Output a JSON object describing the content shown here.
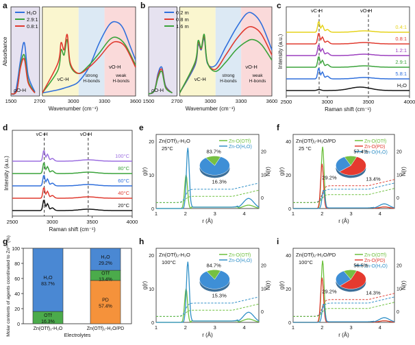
{
  "chart_data": [
    {
      "panel": "a",
      "type": "line",
      "xlabel": "Wavenumber (cm⁻¹)",
      "ylabel": "Absorbance",
      "x_break": [
        1500,
        2700
      ],
      "ticks_left": [
        "1500",
        "2700"
      ],
      "ticks_right": [
        "3000",
        "3300",
        "3600"
      ],
      "legend": [
        "H₂O",
        "2.9:1",
        "0.8:1"
      ],
      "region_labels": [
        "strong H-bonds",
        "weak H-bonds"
      ],
      "peak_labels": [
        "ρO-H",
        "νC-H",
        "νO-H"
      ],
      "colors": [
        "#2f6fdc",
        "#3aa33a",
        "#e03a2f"
      ],
      "series": [
        {
          "name": "H₂O",
          "x": [
            1500,
            1550,
            1600,
            1640,
            1680,
            1750,
            2700,
            2850,
            2920,
            2980,
            3050,
            3150,
            3250,
            3350,
            3420,
            3480,
            3550,
            3600
          ],
          "y": [
            0.02,
            0.05,
            0.35,
            0.52,
            0.2,
            0.04,
            0.03,
            0.06,
            0.08,
            0.1,
            0.14,
            0.28,
            0.52,
            0.7,
            0.72,
            0.66,
            0.48,
            0.35
          ]
        },
        {
          "name": "2.9:1",
          "x": [
            1500,
            1560,
            1600,
            1640,
            1680,
            1750,
            2700,
            2850,
            2880,
            2910,
            2940,
            2970,
            3050,
            3150,
            3250,
            3350,
            3420,
            3500,
            3600
          ],
          "y": [
            0.02,
            0.05,
            0.3,
            0.4,
            0.15,
            0.03,
            0.03,
            0.25,
            0.45,
            0.4,
            0.55,
            0.3,
            0.22,
            0.3,
            0.42,
            0.55,
            0.57,
            0.5,
            0.3
          ]
        },
        {
          "name": "0.8:1",
          "x": [
            1500,
            1560,
            1600,
            1640,
            1680,
            1750,
            2700,
            2850,
            2880,
            2910,
            2940,
            2970,
            3050,
            3150,
            3250,
            3350,
            3420,
            3500,
            3600
          ],
          "y": [
            0.02,
            0.05,
            0.28,
            0.36,
            0.13,
            0.03,
            0.03,
            0.32,
            0.52,
            0.45,
            0.6,
            0.32,
            0.22,
            0.28,
            0.38,
            0.5,
            0.53,
            0.48,
            0.28
          ]
        }
      ]
    },
    {
      "panel": "b",
      "type": "line",
      "xlabel": "Wavenumber (cm⁻¹)",
      "x_break": [
        1500,
        2700
      ],
      "ticks_left": [
        "1500",
        "2700"
      ],
      "ticks_right": [
        "3000",
        "3300",
        "3600"
      ],
      "legend": [
        "0.2 m",
        "0.8 m",
        "1.6 m"
      ],
      "region_labels": [
        "strong H-bonds",
        "weak H-bonds"
      ],
      "peak_labels": [
        "ρO-H",
        "νC-H",
        "νO-H"
      ],
      "colors": [
        "#2f6fdc",
        "#e03a2f",
        "#3aa33a"
      ],
      "series": [
        {
          "name": "0.2 m",
          "x": [
            1500,
            1560,
            1600,
            1640,
            1680,
            1750,
            2700,
            2850,
            2880,
            2910,
            2940,
            2970,
            3050,
            3150,
            3250,
            3350,
            3420,
            3500,
            3600
          ],
          "y": [
            0.02,
            0.05,
            0.22,
            0.28,
            0.1,
            0.03,
            0.03,
            0.3,
            0.5,
            0.45,
            0.56,
            0.32,
            0.3,
            0.48,
            0.66,
            0.8,
            0.8,
            0.7,
            0.45
          ]
        },
        {
          "name": "0.8 m",
          "x": [
            1500,
            1560,
            1600,
            1640,
            1680,
            1750,
            2700,
            2850,
            2880,
            2910,
            2940,
            2970,
            3050,
            3150,
            3250,
            3350,
            3420,
            3500,
            3600
          ],
          "y": [
            0.02,
            0.05,
            0.2,
            0.26,
            0.09,
            0.03,
            0.03,
            0.32,
            0.52,
            0.46,
            0.58,
            0.33,
            0.26,
            0.4,
            0.55,
            0.66,
            0.67,
            0.6,
            0.4
          ]
        },
        {
          "name": "1.6 m",
          "x": [
            1500,
            1560,
            1600,
            1640,
            1680,
            1750,
            2700,
            2850,
            2880,
            2910,
            2940,
            2970,
            3050,
            3150,
            3250,
            3350,
            3420,
            3500,
            3600
          ],
          "y": [
            0.02,
            0.05,
            0.18,
            0.24,
            0.08,
            0.03,
            0.03,
            0.33,
            0.54,
            0.47,
            0.6,
            0.33,
            0.24,
            0.33,
            0.45,
            0.53,
            0.55,
            0.5,
            0.35
          ]
        }
      ]
    },
    {
      "panel": "c",
      "type": "line",
      "xlabel": "Raman shift (cm⁻¹)",
      "ylabel": "Intensity (a.u.)",
      "xlim": [
        2500,
        4000
      ],
      "x_ticks": [
        2500,
        3000,
        3500,
        4000
      ],
      "vlines": [
        2900,
        3500
      ],
      "vline_labels": [
        "νC-H",
        "νO-H"
      ],
      "series": [
        {
          "name": "0.4:1",
          "color": "#e6d31a",
          "offset": 5
        },
        {
          "name": "0.8:1",
          "color": "#e03a2f",
          "offset": 4
        },
        {
          "name": "1.2:1",
          "color": "#9c3fbf",
          "offset": 3
        },
        {
          "name": "2.9:1",
          "color": "#3aa33a",
          "offset": 2
        },
        {
          "name": "5.8:1",
          "color": "#2f6fdc",
          "offset": 1
        },
        {
          "name": "H₂O",
          "color": "#111111",
          "offset": 0
        }
      ]
    },
    {
      "panel": "d",
      "type": "line",
      "xlabel": "Raman shift (cm⁻¹)",
      "ylabel": "Intensity (a.u.)",
      "xlim": [
        2500,
        4000
      ],
      "x_ticks": [
        2500,
        3000,
        3500,
        4000
      ],
      "vlines": [
        2900,
        3450
      ],
      "vline_labels": [
        "νC-H",
        "νO-H"
      ],
      "series": [
        {
          "name": "100°C",
          "color": "#9c6fe0",
          "offset": 4
        },
        {
          "name": "80°C",
          "color": "#3aa33a",
          "offset": 3
        },
        {
          "name": "60°C",
          "color": "#2f6fdc",
          "offset": 2
        },
        {
          "name": "40°C",
          "color": "#e03a2f",
          "offset": 1
        },
        {
          "name": "20°C",
          "color": "#111111",
          "offset": 0
        }
      ]
    },
    {
      "panel": "e",
      "type": "line",
      "title": "Zn(OTf)₂-H₂O",
      "subtitle": "25°C",
      "xlabel": "r (Å)",
      "ylabel": "g(r)",
      "y2label": "N(r)",
      "legend": [
        "Zn-O(OTf)",
        "Zn-O(H₂O)"
      ],
      "pie": {
        "values": [
          83.7,
          16.3
        ],
        "labels": [
          "83.7%",
          "16.3%"
        ],
        "colors": [
          "#3e8fd6",
          "#76c043"
        ]
      }
    },
    {
      "panel": "f",
      "type": "line",
      "title": "Zn(OTf)₂-H₂O/PD",
      "subtitle": "25 °C",
      "xlabel": "r (Å)",
      "ylabel": "g(r)",
      "y2label": "N(r)",
      "legend": [
        "Zn-O(OTf)",
        "Zn-O(PD)",
        "Zn-O(H₂O)"
      ],
      "pie": {
        "values": [
          57.4,
          29.2,
          13.4
        ],
        "labels": [
          "57.4%",
          "29.2%",
          "13.4%"
        ],
        "colors": [
          "#e53a2f",
          "#3e8fd6",
          "#76c043"
        ]
      }
    },
    {
      "panel": "g",
      "type": "bar",
      "ylabel": "Molar contents of agents coordinated to Zn²⁺ (%)",
      "xlabel": "Electrolytes",
      "categories": [
        "Zn(OTf)₂-H₂O",
        "Zn(OTf)₂-H₂O/PD"
      ],
      "stacks": [
        [
          {
            "name": "OTf",
            "value": 16.3,
            "label": "16.3%",
            "color": "#4bab4b"
          },
          {
            "name": "H₂O",
            "value": 83.7,
            "label": "83.7%",
            "color": "#4a88d3"
          }
        ],
        [
          {
            "name": "PD",
            "value": 57.4,
            "label": "57.4%",
            "color": "#f5923b"
          },
          {
            "name": "OTf",
            "value": 13.4,
            "label": "13.4%",
            "color": "#4bab4b"
          },
          {
            "name": "H₂O",
            "value": 29.2,
            "label": "29.2%",
            "color": "#4a88d3"
          }
        ]
      ]
    },
    {
      "panel": "h",
      "type": "line",
      "title": "Zn(OTf)₂-H₂O",
      "subtitle": "100°C",
      "xlabel": "r (Å)",
      "ylabel": "g(r)",
      "y2label": "N(r)",
      "legend": [
        "Zn-O(OTf)",
        "Zn-O(H₂O)"
      ],
      "pie": {
        "values": [
          84.7,
          15.3
        ],
        "labels": [
          "84.7%",
          "15.3%"
        ],
        "colors": [
          "#3e8fd6",
          "#76c043"
        ]
      }
    },
    {
      "panel": "i",
      "type": "line",
      "title": "Zn(OTf)₂-H₂O/PD",
      "subtitle": "100°C",
      "xlabel": "r (Å)",
      "ylabel": "g(r)",
      "y2label": "N(r)",
      "legend": [
        "Zn-O(OTf)",
        "Zn-O(PD)",
        "Zn-O(H₂O)"
      ],
      "pie": {
        "values": [
          56.5,
          29.2,
          14.3
        ],
        "labels": [
          "56.5%",
          "29.2%",
          "14.3%"
        ],
        "colors": [
          "#e53a2f",
          "#3e8fd6",
          "#76c043"
        ]
      }
    }
  ],
  "rdf": {
    "x_ticks": [
      "1",
      "2",
      "3",
      "4"
    ],
    "y_ticks_e": [
      "0",
      "10",
      "20"
    ],
    "y2_ticks_e": [
      "0",
      "10",
      "20"
    ],
    "y_ticks_f": [
      "0",
      "20",
      "40"
    ],
    "y2_ticks_f": [
      "0",
      "10",
      "20"
    ]
  },
  "bar_ticks": [
    "0",
    "20",
    "40",
    "60",
    "80",
    "100"
  ]
}
